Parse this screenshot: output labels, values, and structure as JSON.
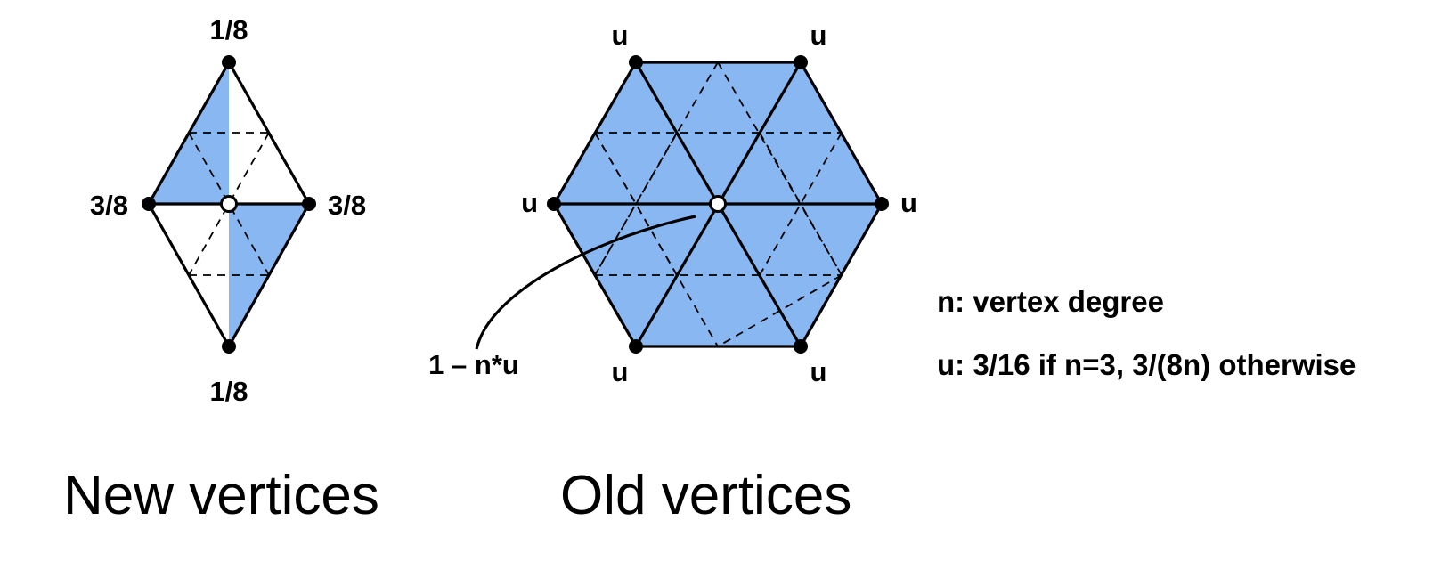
{
  "new_vertices": {
    "caption": "New vertices",
    "weights": {
      "top": "1/8",
      "bottom": "1/8",
      "left": "3/8",
      "right": "3/8"
    }
  },
  "old_vertices": {
    "caption": "Old vertices",
    "weights": {
      "top_left": "u",
      "top_right": "u",
      "left": "u",
      "right": "u",
      "bottom_left": "u",
      "bottom_right": "u"
    },
    "center_weight": "1 – n*u"
  },
  "legend": {
    "n_def": "n: vertex degree",
    "u_def": "u: 3/16 if n=3, 3/(8n) otherwise"
  },
  "colors": {
    "face": "#88b7f2",
    "edge": "#000000",
    "center_fill": "#ffffff"
  }
}
